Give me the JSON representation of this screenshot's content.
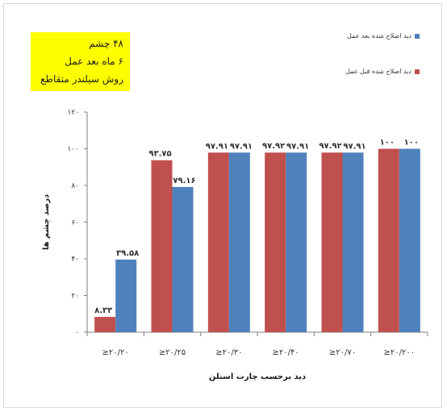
{
  "note": {
    "lines": [
      "۴۸ چشم",
      "۶ ماه بعد عمل",
      "روش سیلندر متقاطع"
    ]
  },
  "legend": [
    {
      "label": "دید اصلاح شده بعد عمل",
      "color": "#4f81bd"
    },
    {
      "label": "دید اصلاح شده قبل عمل",
      "color": "#c0504d"
    }
  ],
  "chart_data": {
    "type": "bar",
    "xlabel": "دید برحسب چارت اسنلن",
    "ylabel": "درصد چشم ها",
    "ylim": [
      0,
      120
    ],
    "y_ticks": [
      0,
      20,
      40,
      60,
      80,
      100,
      120
    ],
    "y_tick_labels": [
      "۰",
      "۲۰",
      "۴۰",
      "۶۰",
      "۸۰",
      "۱۰۰",
      "۱۲۰"
    ],
    "categories": [
      "≥۲۰/۲۰",
      "≥۲۰/۲۵",
      "≥۲۰/۳۰",
      "≥۲۰/۴۰",
      "≥۲۰/۷۰",
      "≥۲۰/۲۰۰"
    ],
    "series": [
      {
        "name": "دید اصلاح شده قبل عمل",
        "color": "#c0504d",
        "values": [
          8.33,
          93.75,
          97.91,
          97.92,
          97.92,
          100
        ],
        "value_labels": [
          "۸.۳۳",
          "۹۳.۷۵",
          "۹۷.۹۱",
          "۹۷.۹۲",
          "۹۷.۹۲",
          "۱۰۰"
        ]
      },
      {
        "name": "دید اصلاح شده بعد عمل",
        "color": "#4f81bd",
        "values": [
          39.58,
          79.16,
          97.91,
          97.91,
          97.91,
          100
        ],
        "value_labels": [
          "۳۹.۵۸",
          "۷۹.۱۶",
          "۹۷.۹۱",
          "۹۷.۹۱",
          "۹۷.۹۱",
          "۱۰۰"
        ]
      }
    ],
    "grid": false,
    "legend_position": "top-right"
  }
}
